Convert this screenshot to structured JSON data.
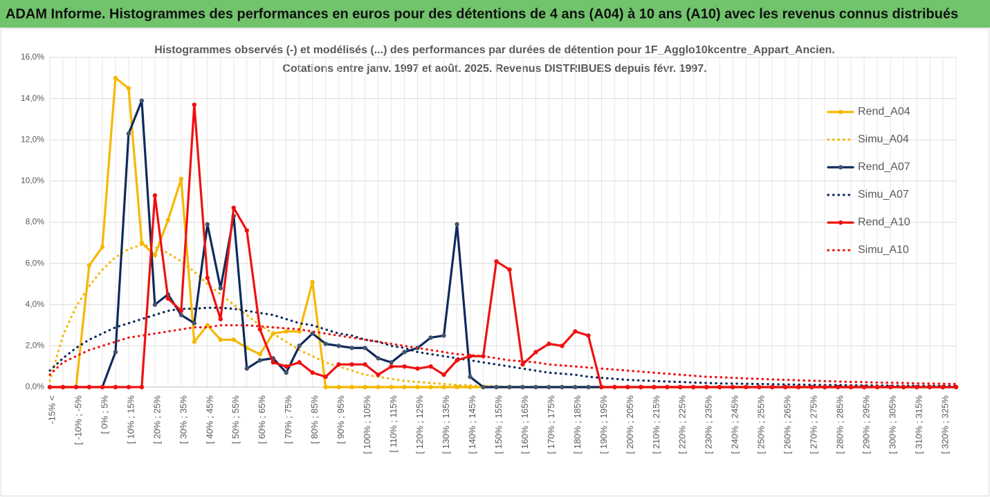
{
  "header": {
    "title": "ADAM Informe. Histogrammes des performances en euros pour des détentions de 4 ans (A04) à 10 ans (A10) avec les revenus connus distribués"
  },
  "chart_data": {
    "type": "line",
    "title": "Histogrammes observés (-) et modélisés (...) des performances par durées de détention pour 1F_Agglo10kcentre_Appart_Ancien.",
    "subtitle": "Cotations entre janv. 1997 et août. 2025. Revenus DISTRIBUES depuis févr. 1997.",
    "categories": [
      "-15% <",
      null,
      "[ -10% ; -5%",
      null,
      "[ 0% ; 5%",
      null,
      "[ 10% ; 15%",
      null,
      "[ 20% ; 25%",
      null,
      "[ 30% ; 35%",
      null,
      "[ 40% ; 45%",
      null,
      "[ 50% ; 55%",
      null,
      "[ 60% ; 65%",
      null,
      "[ 70% ; 75%",
      null,
      "[ 80% ; 85%",
      null,
      "[ 90% ; 95%",
      null,
      "[ 100% ; 105%",
      null,
      "[ 110% ; 115%",
      null,
      "[ 120% ; 125%",
      null,
      "[ 130% ; 135%",
      null,
      "[ 140% ; 145%",
      null,
      "[ 150% ; 155%",
      null,
      "[ 160% ; 165%",
      null,
      "[ 170% ; 175%",
      null,
      "[ 180% ; 185%",
      null,
      "[ 190% ; 195%",
      null,
      "[ 200% ; 205%",
      null,
      "[ 210% ; 215%",
      null,
      "[ 220% ; 225%",
      null,
      "[ 230% ; 235%",
      null,
      "[ 240% ; 245%",
      null,
      "[ 250% ; 255%",
      null,
      "[ 260% ; 265%",
      null,
      "[ 270% ; 275%",
      null,
      "[ 280% ; 285%",
      null,
      "[ 290% ; 295%",
      null,
      "[ 300% ; 305%",
      null,
      "[ 310% ; 315%",
      null,
      "[ 320% ; 325%",
      null
    ],
    "series": [
      {
        "name": "Rend_A04",
        "color": "#f5b800",
        "style": "solid",
        "values": [
          0,
          0,
          0,
          5.9,
          6.8,
          15.0,
          14.5,
          7.0,
          6.4,
          8.1,
          10.1,
          2.2,
          3.0,
          2.3,
          2.3,
          1.9,
          1.6,
          2.6,
          2.7,
          2.7,
          5.1,
          0,
          0,
          0,
          0,
          0,
          0,
          0,
          0,
          0,
          0,
          0,
          0,
          0,
          0,
          0,
          0,
          0,
          0,
          0,
          0,
          0,
          0,
          0,
          0,
          0,
          0,
          0,
          0,
          0,
          0,
          0,
          0,
          0,
          0,
          0,
          0,
          0,
          0,
          0,
          0,
          0,
          0,
          0,
          0,
          0,
          0,
          0,
          0,
          0
        ]
      },
      {
        "name": "Simu_A04",
        "color": "#f5b800",
        "style": "dotted",
        "values": [
          0.3,
          2.5,
          3.9,
          4.9,
          5.7,
          6.3,
          6.7,
          6.9,
          6.8,
          6.5,
          6.1,
          5.6,
          5.0,
          4.5,
          4.0,
          3.5,
          3.0,
          2.6,
          2.2,
          1.8,
          1.5,
          1.2,
          1.0,
          0.8,
          0.6,
          0.5,
          0.4,
          0.3,
          0.25,
          0.2,
          0.15,
          0.1,
          0.08,
          0.06,
          0.05,
          0,
          0,
          0,
          0,
          0,
          0,
          0,
          0,
          0,
          0,
          0,
          0,
          0,
          0,
          0,
          0,
          0,
          0,
          0,
          0,
          0,
          0,
          0,
          0,
          0,
          0,
          0,
          0,
          0,
          0,
          0,
          0,
          0,
          0,
          0
        ]
      },
      {
        "name": "Rend_A07",
        "color": "#0d2a5c",
        "style": "solid",
        "values": [
          0,
          0,
          0,
          0,
          0,
          1.7,
          12.3,
          13.9,
          4.0,
          4.5,
          3.5,
          3.1,
          7.9,
          4.8,
          8.3,
          0.9,
          1.3,
          1.4,
          0.7,
          2.0,
          2.6,
          2.1,
          2.0,
          1.9,
          1.9,
          1.4,
          1.2,
          1.7,
          1.9,
          2.4,
          2.5,
          7.9,
          0.5,
          0,
          0,
          0,
          0,
          0,
          0,
          0,
          0,
          0,
          0,
          0,
          0,
          0,
          0,
          0,
          0,
          0,
          0,
          0,
          0,
          0,
          0,
          0,
          0,
          0,
          0,
          0,
          0,
          0,
          0,
          0,
          0,
          0,
          0,
          0,
          0,
          0
        ]
      },
      {
        "name": "Simu_A07",
        "color": "#0d2a5c",
        "style": "dotted",
        "values": [
          0.8,
          1.4,
          1.9,
          2.3,
          2.6,
          2.9,
          3.1,
          3.3,
          3.5,
          3.7,
          3.8,
          3.8,
          3.85,
          3.85,
          3.8,
          3.7,
          3.6,
          3.5,
          3.3,
          3.1,
          3.0,
          2.8,
          2.6,
          2.5,
          2.3,
          2.2,
          2.0,
          1.9,
          1.7,
          1.6,
          1.5,
          1.4,
          1.3,
          1.2,
          1.1,
          1.0,
          0.9,
          0.8,
          0.7,
          0.65,
          0.6,
          0.5,
          0.45,
          0.4,
          0.35,
          0.32,
          0.3,
          0.27,
          0.25,
          0.22,
          0.2,
          0.18,
          0.17,
          0.16,
          0.15,
          0.14,
          0.13,
          0.12,
          0.11,
          0.1,
          0.1,
          0.09,
          0.08,
          0.08,
          0.07,
          0.07,
          0.06,
          0.06,
          0.05,
          0.05
        ]
      },
      {
        "name": "Rend_A10",
        "color": "#f01010",
        "style": "solid",
        "values": [
          0,
          0,
          0,
          0,
          0,
          0,
          0,
          0,
          9.3,
          4.3,
          3.7,
          13.7,
          5.3,
          3.3,
          8.7,
          7.6,
          2.8,
          1.2,
          1.0,
          1.2,
          0.7,
          0.5,
          1.1,
          1.1,
          1.1,
          0.6,
          1.0,
          1.0,
          0.9,
          1.0,
          0.6,
          1.3,
          1.5,
          1.5,
          6.1,
          5.7,
          1.1,
          1.7,
          2.1,
          2.0,
          2.7,
          2.5,
          0,
          0,
          0,
          0,
          0,
          0,
          0,
          0,
          0,
          0,
          0,
          0,
          0,
          0,
          0,
          0,
          0,
          0,
          0,
          0,
          0,
          0,
          0,
          0,
          0,
          0,
          0,
          0
        ]
      },
      {
        "name": "Simu_A10",
        "color": "#f01010",
        "style": "dotted",
        "values": [
          0.6,
          1.2,
          1.5,
          1.8,
          2.0,
          2.2,
          2.4,
          2.5,
          2.6,
          2.7,
          2.8,
          2.9,
          2.9,
          3.0,
          3.0,
          3.0,
          2.95,
          2.9,
          2.85,
          2.8,
          2.7,
          2.6,
          2.5,
          2.4,
          2.3,
          2.2,
          2.1,
          2.0,
          1.9,
          1.8,
          1.7,
          1.6,
          1.55,
          1.5,
          1.4,
          1.3,
          1.25,
          1.2,
          1.1,
          1.05,
          1.0,
          0.95,
          0.9,
          0.85,
          0.8,
          0.75,
          0.7,
          0.65,
          0.6,
          0.55,
          0.5,
          0.48,
          0.45,
          0.42,
          0.4,
          0.37,
          0.35,
          0.33,
          0.31,
          0.29,
          0.27,
          0.25,
          0.24,
          0.22,
          0.21,
          0.2,
          0.18,
          0.17,
          0.16,
          0.15
        ]
      }
    ],
    "ylim": [
      0,
      16
    ],
    "yticks": [
      {
        "value": 0,
        "label": "0,0%"
      },
      {
        "value": 2,
        "label": "2,0%"
      },
      {
        "value": 4,
        "label": "4,0%"
      },
      {
        "value": 6,
        "label": "6,0%"
      },
      {
        "value": 8,
        "label": "8,0%"
      },
      {
        "value": 10,
        "label": "10,0%"
      },
      {
        "value": 12,
        "label": "12,0%"
      },
      {
        "value": 14,
        "label": "14,0%"
      },
      {
        "value": 16,
        "label": "16,0%"
      }
    ],
    "grid": true,
    "legend": "right"
  }
}
